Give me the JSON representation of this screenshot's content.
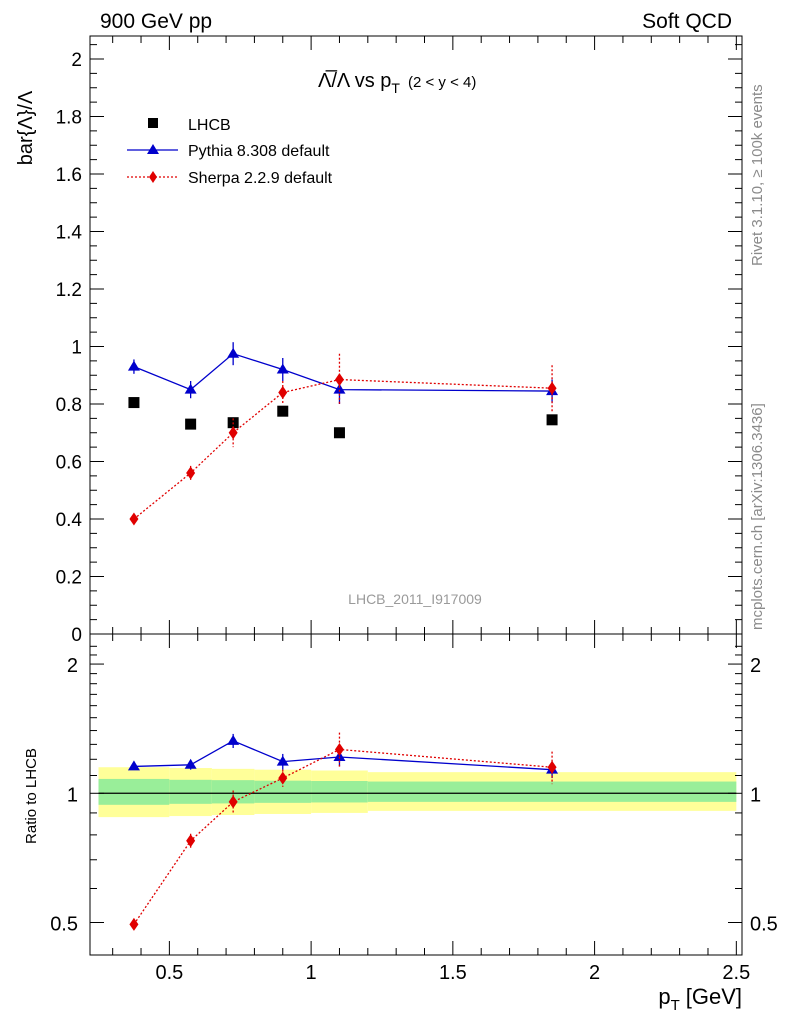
{
  "header": {
    "left": "900 GeV pp",
    "right": "Soft QCD"
  },
  "side_text": {
    "rivet": "Rivet 3.1.10, ≥ 100k events",
    "mcplots": "mcplots.cern.ch [arXiv:1306.3436]"
  },
  "chart_data": [
    {
      "type": "scatter",
      "panel": "main",
      "title_main": "Λ̅/Λ vs p",
      "title_sub": "T",
      "title_range": "(2 < y < 4)",
      "ylabel": "bar{Λ}/Λ",
      "watermark": "LHCB_2011_I917009",
      "ylim": [
        0,
        2.08
      ],
      "xlim": [
        0.22,
        2.52
      ],
      "yticks": [
        0,
        0.2,
        0.4,
        0.6,
        0.8,
        1,
        1.2,
        1.4,
        1.6,
        1.8,
        2
      ],
      "ytick_labels": [
        "0",
        "0.2",
        "0.4",
        "0.6",
        "0.8",
        "1",
        "1.2",
        "1.4",
        "1.6",
        "1.8",
        "2"
      ],
      "legend_placement": "top-left",
      "series": [
        {
          "name": "LHCB",
          "color": "#000000",
          "marker": "square",
          "x": [
            0.375,
            0.575,
            0.725,
            0.9,
            1.1,
            1.85
          ],
          "y": [
            0.805,
            0.73,
            0.735,
            0.775,
            0.7,
            0.745
          ],
          "err": [
            0.0,
            0.0,
            0.0,
            0.0,
            0.0,
            0.0
          ]
        },
        {
          "name": "Pythia 8.308 default",
          "color": "#0000cc",
          "marker": "triangle",
          "line": "solid",
          "x": [
            0.375,
            0.575,
            0.725,
            0.9,
            1.1,
            1.85
          ],
          "y": [
            0.93,
            0.85,
            0.975,
            0.92,
            0.85,
            0.845
          ],
          "err": [
            0.025,
            0.03,
            0.04,
            0.04,
            0.05,
            0.04
          ]
        },
        {
          "name": "Sherpa 2.2.9 default",
          "color": "#e00000",
          "marker": "diamond",
          "line": "dotted",
          "x": [
            0.375,
            0.575,
            0.725,
            0.9,
            1.1,
            1.85
          ],
          "y": [
            0.4,
            0.56,
            0.7,
            0.84,
            0.885,
            0.855
          ],
          "err": [
            0.012,
            0.025,
            0.05,
            0.04,
            0.09,
            0.08
          ]
        }
      ]
    },
    {
      "type": "scatter",
      "panel": "ratio",
      "ylabel": "Ratio to LHCB",
      "xlabel": "p",
      "xlabel_sub": "T",
      "xlabel_unit": "[GeV]",
      "yscale": "log",
      "ylim": [
        0.42,
        2.35
      ],
      "xlim": [
        0.22,
        2.52
      ],
      "yticks": [
        0.5,
        1,
        2
      ],
      "ytick_labels": [
        "0.5",
        "1",
        "2"
      ],
      "xticks": [
        0.5,
        1,
        1.5,
        2,
        2.5
      ],
      "xtick_labels": [
        "0.5",
        "1",
        "1.5",
        "2",
        "2.5"
      ],
      "bands": [
        {
          "x0": 0.25,
          "x1": 0.5,
          "yellow": [
            0.88,
            1.15
          ],
          "green": [
            0.94,
            1.08
          ]
        },
        {
          "x0": 0.5,
          "x1": 0.65,
          "yellow": [
            0.885,
            1.145
          ],
          "green": [
            0.945,
            1.075
          ]
        },
        {
          "x0": 0.65,
          "x1": 0.8,
          "yellow": [
            0.89,
            1.14
          ],
          "green": [
            0.947,
            1.073
          ]
        },
        {
          "x0": 0.8,
          "x1": 1.0,
          "yellow": [
            0.895,
            1.135
          ],
          "green": [
            0.95,
            1.07
          ]
        },
        {
          "x0": 1.0,
          "x1": 1.2,
          "yellow": [
            0.9,
            1.13
          ],
          "green": [
            0.952,
            1.068
          ]
        },
        {
          "x0": 1.2,
          "x1": 2.5,
          "yellow": [
            0.91,
            1.12
          ],
          "green": [
            0.955,
            1.065
          ]
        }
      ],
      "series": [
        {
          "name": "Pythia 8.308 default",
          "color": "#0000cc",
          "marker": "triangle",
          "line": "solid",
          "x": [
            0.375,
            0.575,
            0.725,
            0.9,
            1.1,
            1.85
          ],
          "y": [
            1.155,
            1.165,
            1.325,
            1.185,
            1.215,
            1.135
          ],
          "err": [
            0.02,
            0.03,
            0.05,
            0.05,
            0.06,
            0.05
          ]
        },
        {
          "name": "Sherpa 2.2.9 default",
          "color": "#e00000",
          "marker": "diamond",
          "line": "dotted",
          "x": [
            0.375,
            0.575,
            0.725,
            0.9,
            1.1,
            1.85
          ],
          "y": [
            0.495,
            0.775,
            0.955,
            1.085,
            1.265,
            1.15
          ],
          "err": [
            0.015,
            0.03,
            0.06,
            0.05,
            0.12,
            0.1
          ]
        }
      ]
    }
  ]
}
